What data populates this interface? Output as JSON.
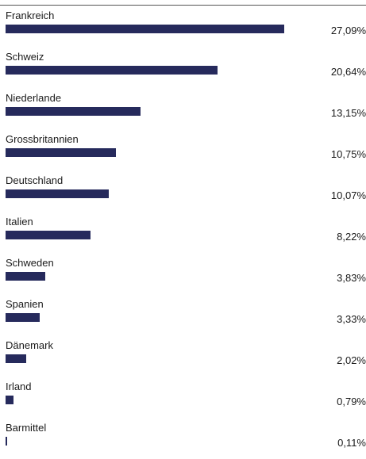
{
  "chart_data": {
    "type": "bar",
    "orientation": "horizontal",
    "categories": [
      "Frankreich",
      "Schweiz",
      "Niederlande",
      "Grossbritannien",
      "Deutschland",
      "Italien",
      "Schweden",
      "Spanien",
      "Dänemark",
      "Irland",
      "Barmittel"
    ],
    "values": [
      27.09,
      20.64,
      13.15,
      10.75,
      10.07,
      8.22,
      3.83,
      3.33,
      2.02,
      0.79,
      0.11
    ],
    "value_labels": [
      "27,09%",
      "20,64%",
      "13,15%",
      "10,75%",
      "10,07%",
      "8,22%",
      "3,83%",
      "3,33%",
      "2,02%",
      "0,79%",
      "0,11%"
    ],
    "unit": "%",
    "bar_color": "#262a5c",
    "grid": false,
    "legend": "none"
  }
}
